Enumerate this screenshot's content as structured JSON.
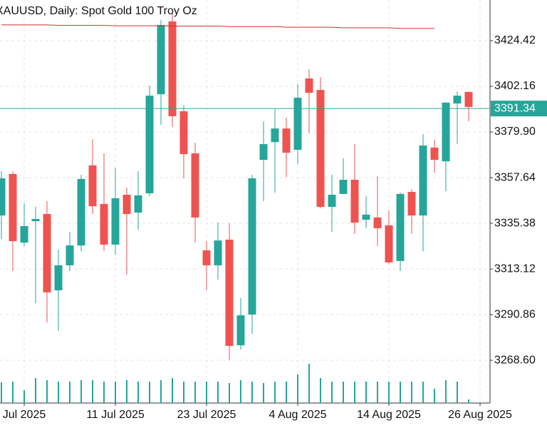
{
  "chart_data": {
    "type": "candlestick",
    "title": "XAUUSD, Daily:  Spot Gold 100 Troy Oz",
    "categories": [
      null,
      null,
      "Jul 2025",
      null,
      null,
      null,
      null,
      null,
      null,
      null,
      "11 Jul 2025",
      null,
      null,
      null,
      null,
      null,
      null,
      null,
      "23 Jul 2025",
      null,
      null,
      null,
      null,
      null,
      null,
      null,
      "4 Aug 2025",
      null,
      null,
      null,
      null,
      null,
      null,
      null,
      "14 Aug 2025",
      null,
      null,
      null,
      null,
      null,
      null,
      null,
      "26 Aug 2025"
    ],
    "open": [
      3339.2,
      3359.4,
      3326.0,
      3336.4,
      3339.9,
      3302.7,
      3314.9,
      3324.6,
      3363.6,
      3344.8,
      3325.0,
      3349.3,
      3340.6,
      3350.0,
      3398.3,
      3433.8,
      3390.0,
      3369.5,
      3322.2,
      3314.9,
      3327.4,
      3275.9,
      3290.9,
      3366.3,
      3375.0,
      3381.6,
      3371.2,
      3406.0,
      3400.4,
      3343.4,
      3349.7,
      3356.6,
      3337.1,
      3338.2,
      3334.4,
      3317.0,
      3350.7,
      3339.2,
      3372.3,
      3365.6,
      3393.8,
      3399.4,
      null
    ],
    "high": [
      3360.8,
      3360.8,
      3345.1,
      3343.4,
      3346.2,
      3322.5,
      3331.2,
      3359.0,
      3376.4,
      3369.5,
      3362.5,
      3352.8,
      3360.8,
      3402.5,
      3434.5,
      3438.0,
      3392.8,
      3374.7,
      3326.7,
      3335.7,
      3335.4,
      3298.9,
      3359.0,
      3385.1,
      3391.0,
      3386.9,
      3403.2,
      3410.5,
      3406.7,
      3359.0,
      3367.0,
      3374.0,
      3348.6,
      3358.3,
      3341.7,
      3350.3,
      3352.1,
      3378.9,
      3376.1,
      3394.5,
      3399.7,
      3399.7,
      null
    ],
    "low": [
      3327.7,
      3312.1,
      3324.3,
      3296.4,
      3287.0,
      3282.9,
      3312.1,
      3321.8,
      3339.9,
      3321.8,
      3320.1,
      3310.4,
      3332.3,
      3348.6,
      3383.4,
      3382.3,
      3357.3,
      3326.0,
      3302.7,
      3307.9,
      3268.6,
      3273.8,
      3281.5,
      3346.2,
      3350.3,
      3358.0,
      3364.3,
      3379.2,
      3342.7,
      3331.2,
      3349.7,
      3330.2,
      3333.0,
      3324.3,
      3315.6,
      3312.1,
      3330.2,
      3321.8,
      3360.1,
      3351.0,
      3374.0,
      3385.1,
      null
    ],
    "close": [
      3357.3,
      3326.7,
      3334.0,
      3337.5,
      3301.7,
      3314.9,
      3324.6,
      3357.0,
      3343.7,
      3325.0,
      3347.6,
      3339.9,
      3349.0,
      3397.6,
      3432.1,
      3387.6,
      3369.1,
      3338.2,
      3314.9,
      3327.0,
      3275.6,
      3290.5,
      3357.3,
      3374.0,
      3381.6,
      3369.8,
      3396.6,
      3399.0,
      3343.4,
      3349.3,
      3356.6,
      3335.7,
      3339.6,
      3333.0,
      3316.3,
      3349.7,
      3339.2,
      3373.3,
      3366.3,
      3394.2,
      3397.6,
      3392.1,
      null
    ],
    "volume": [
      29,
      30,
      18,
      35,
      32,
      30,
      30,
      32,
      32,
      30,
      30,
      32,
      30,
      30,
      32,
      35,
      30,
      30,
      30,
      30,
      28,
      32,
      30,
      28,
      30,
      30,
      40,
      55,
      35,
      30,
      30,
      30,
      30,
      30,
      30,
      30,
      30,
      30,
      20,
      32,
      30,
      5,
      null
    ],
    "ma": [
      3432.1,
      3432.1,
      3432.1,
      3432.1,
      3432.1,
      3431.9,
      3431.9,
      3431.9,
      3431.9,
      3431.9,
      3431.7,
      3431.7,
      3431.7,
      3431.7,
      3431.7,
      3431.5,
      3431.5,
      3431.5,
      3431.5,
      3431.5,
      3431.3,
      3431.3,
      3431.3,
      3431.3,
      3431.3,
      3431.0,
      3431.0,
      3431.0,
      3431.0,
      3431.0,
      3430.7,
      3430.7,
      3430.7,
      3430.7,
      3430.7,
      3430.4,
      3430.4,
      3430.4,
      3430.4,
      null,
      null,
      null,
      null
    ],
    "up_color": "#26a69a",
    "down_color": "#ef5350",
    "ma_color": "#d32f2f",
    "last_price": 3391.34,
    "ylim": [
      3247.75,
      3444.25
    ],
    "yticks": [
      {
        "value": 3268.6,
        "label": "3268.60"
      },
      3290.86,
      3313.12,
      3335.38,
      3357.64,
      {
        "value": 3379.9,
        "label": "3379.90"
      },
      3402.16,
      3424.42
    ],
    "grid": true
  }
}
